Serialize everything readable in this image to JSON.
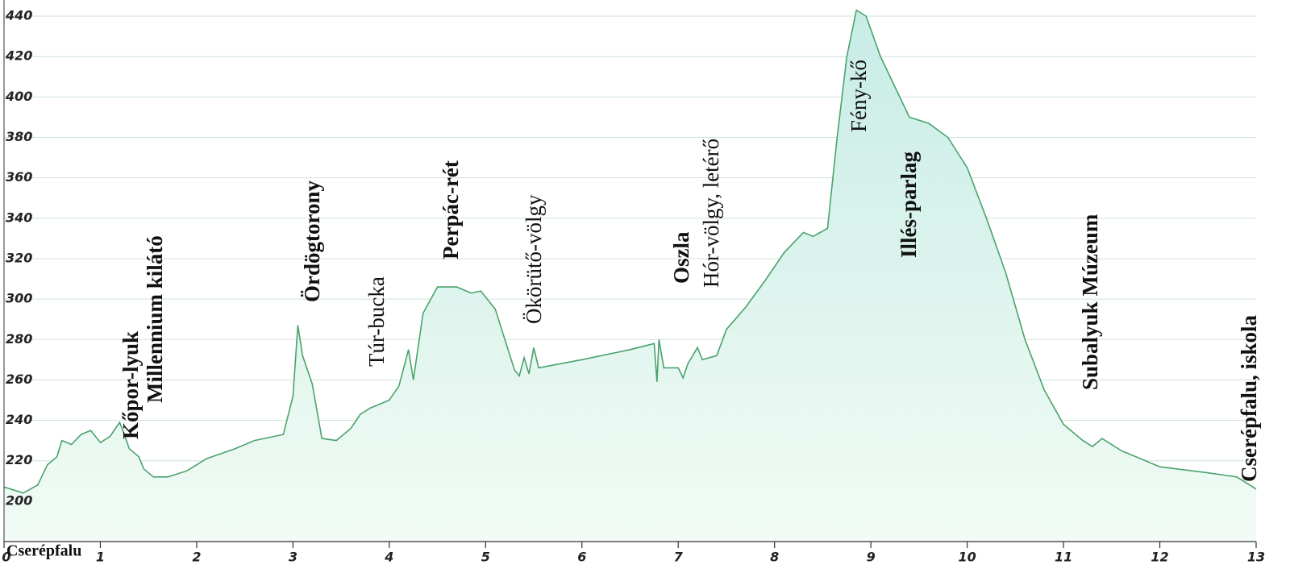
{
  "chart_data": {
    "type": "area",
    "x": [
      0,
      0.2,
      0.35,
      0.45,
      0.55,
      0.6,
      0.7,
      0.8,
      0.9,
      1.0,
      1.1,
      1.2,
      1.25,
      1.3,
      1.4,
      1.45,
      1.55,
      1.7,
      1.9,
      2.1,
      2.4,
      2.6,
      2.9,
      3.0,
      3.05,
      3.1,
      3.2,
      3.3,
      3.45,
      3.6,
      3.7,
      3.8,
      4.0,
      4.1,
      4.2,
      4.25,
      4.35,
      4.5,
      4.7,
      4.85,
      4.95,
      5.1,
      5.3,
      5.35,
      5.4,
      5.45,
      5.5,
      5.55,
      6.0,
      6.5,
      6.75,
      6.78,
      6.8,
      6.85,
      7.0,
      7.05,
      7.1,
      7.2,
      7.25,
      7.4,
      7.5,
      7.7,
      7.9,
      8.1,
      8.3,
      8.4,
      8.55,
      8.65,
      8.75,
      8.85,
      8.95,
      9.1,
      9.3,
      9.4,
      9.6,
      9.8,
      10.0,
      10.2,
      10.4,
      10.6,
      10.8,
      11.0,
      11.2,
      11.3,
      11.4,
      11.6,
      12.0,
      12.5,
      12.8,
      13.0
    ],
    "series": [
      {
        "color": "#4aa36b",
        "fill": "#d6f1ea",
        "values": [
          207,
          204,
          208,
          218,
          222,
          230,
          228,
          233,
          235,
          229,
          232,
          239,
          233,
          226,
          222,
          216,
          212,
          212,
          215,
          221,
          226,
          230,
          233,
          252,
          287,
          272,
          258,
          231,
          230,
          236,
          243,
          246,
          250,
          257,
          275,
          260,
          293,
          306,
          306,
          303,
          304,
          295,
          265,
          262,
          271,
          263,
          276,
          266,
          270,
          275,
          278,
          259,
          280,
          266,
          266,
          261,
          268,
          276,
          270,
          272,
          285,
          296,
          309,
          323,
          333,
          331,
          335,
          380,
          420,
          443,
          440,
          420,
          400,
          390,
          387,
          380,
          365,
          340,
          313,
          280,
          255,
          238,
          230,
          227,
          231,
          225,
          217,
          214,
          212,
          206
        ]
      }
    ],
    "xlim": [
      0,
      13
    ],
    "xticks": [
      0,
      1,
      2,
      3,
      4,
      5,
      6,
      7,
      8,
      9,
      10,
      11,
      12,
      13
    ],
    "ylim": [
      180,
      448
    ],
    "yticks": [
      200,
      220,
      240,
      260,
      280,
      300,
      320,
      340,
      360,
      380,
      400,
      420,
      440
    ],
    "grid": true,
    "start_label": "Cserépfalu",
    "annotations": [
      {
        "text": "Millennium kilátó",
        "bold": true
      },
      {
        "text": "Kőpor-lyuk",
        "bold": true
      },
      {
        "text": "Ördögtorony",
        "bold": true
      },
      {
        "text": "Túr-bucka",
        "bold": false
      },
      {
        "text": "Perpác-rét",
        "bold": true
      },
      {
        "text": "Ökörütő-völgy",
        "bold": false
      },
      {
        "text": "Oszla",
        "bold": true
      },
      {
        "text": "Hór-völgy, letérő",
        "bold": false
      },
      {
        "text": "Fény-kő",
        "bold": false
      },
      {
        "text": "Illés-parlag",
        "bold": true
      },
      {
        "text": "Subalyuk Múzeum",
        "bold": true
      },
      {
        "text": "Cserépfalu, iskola",
        "bold": true
      }
    ]
  }
}
